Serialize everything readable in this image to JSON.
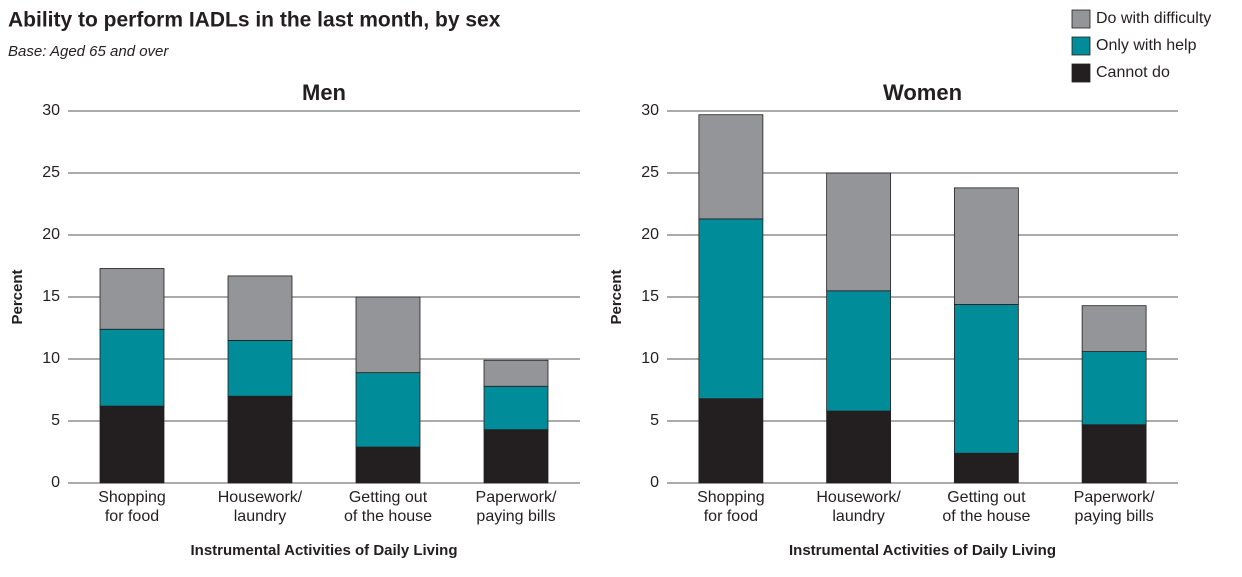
{
  "title": "Ability to perform IADLs in the last month, by sex",
  "subtitle": "Base: Aged 65 and over",
  "legend": [
    {
      "name": "Do with difficulty",
      "color": "#939598"
    },
    {
      "name": "Only with help",
      "color": "#008c99"
    },
    {
      "name": "Cannot do",
      "color": "#231f20"
    }
  ],
  "chart_data": [
    {
      "type": "stacked_bar",
      "title": "Men",
      "ylabel": "Percent",
      "xlabel": "Instrumental Activities of Daily Living",
      "categories": [
        "Shopping\nfor food",
        "Housework/\nlaundry",
        "Getting out\nof the house",
        "Paperwork/\npaying bills"
      ],
      "ylim": [
        0,
        30
      ],
      "yticks": [
        0,
        5,
        10,
        15,
        20,
        25,
        30
      ],
      "grid": true,
      "series": [
        {
          "legend": 2,
          "values": [
            6.2,
            7.0,
            2.9,
            4.3
          ]
        },
        {
          "legend": 1,
          "values": [
            6.2,
            4.5,
            6.0,
            3.5
          ]
        },
        {
          "legend": 0,
          "values": [
            4.9,
            5.2,
            6.1,
            2.1
          ]
        }
      ]
    },
    {
      "type": "stacked_bar",
      "title": "Women",
      "ylabel": "Percent",
      "xlabel": "Instrumental Activities of Daily Living",
      "categories": [
        "Shopping\nfor food",
        "Housework/\nlaundry",
        "Getting out\nof the house",
        "Paperwork/\npaying bills"
      ],
      "ylim": [
        0,
        30
      ],
      "yticks": [
        0,
        5,
        10,
        15,
        20,
        25,
        30
      ],
      "grid": true,
      "series": [
        {
          "legend": 2,
          "values": [
            6.8,
            5.8,
            2.4,
            4.7
          ]
        },
        {
          "legend": 1,
          "values": [
            14.5,
            9.7,
            12.0,
            5.9
          ]
        },
        {
          "legend": 0,
          "values": [
            8.4,
            9.5,
            9.4,
            3.7
          ]
        }
      ]
    }
  ]
}
